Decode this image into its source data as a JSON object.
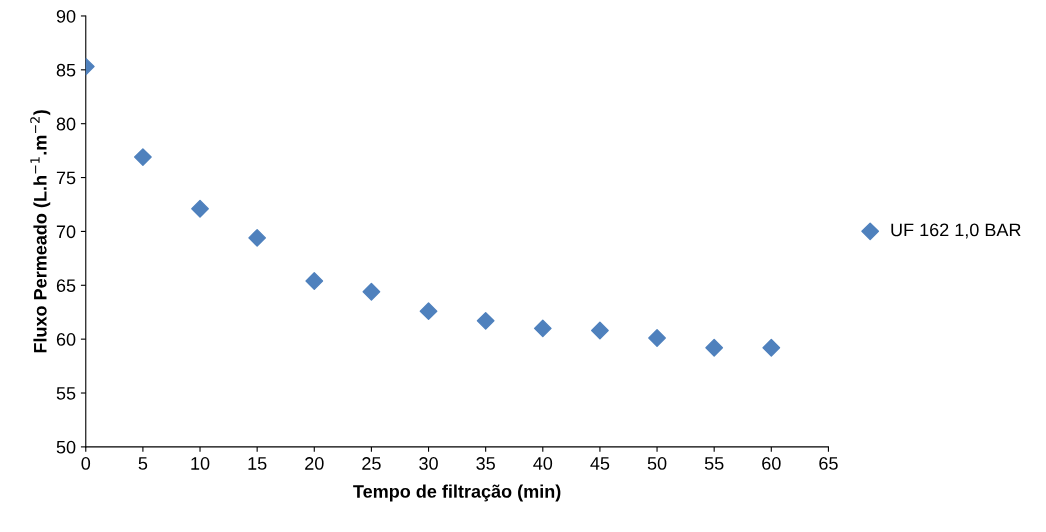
{
  "chart_data": {
    "type": "scatter",
    "xlabel": "Tempo de filtração (min)",
    "ylabel": "Fluxo Permeado (L.h$^{−1}$.m$^{−2}$)",
    "x": [
      0,
      5,
      10,
      15,
      20,
      25,
      30,
      35,
      40,
      45,
      50,
      55,
      60
    ],
    "series": [
      {
        "name": "UF 162 1,0 BAR",
        "color": "#4f81bd",
        "values": [
          85.3,
          76.9,
          72.1,
          69.4,
          65.4,
          64.4,
          62.6,
          61.7,
          61.0,
          60.8,
          60.1,
          59.2,
          59.2
        ]
      }
    ],
    "xlim": [
      0,
      65
    ],
    "xticks": [
      0,
      5,
      10,
      15,
      20,
      25,
      30,
      35,
      40,
      45,
      50,
      55,
      60,
      65
    ],
    "ylim": [
      50,
      90
    ],
    "yticks": [
      50,
      55,
      60,
      65,
      70,
      75,
      80,
      85,
      90
    ],
    "marker": "diamond",
    "grid": false,
    "legend": "right"
  }
}
